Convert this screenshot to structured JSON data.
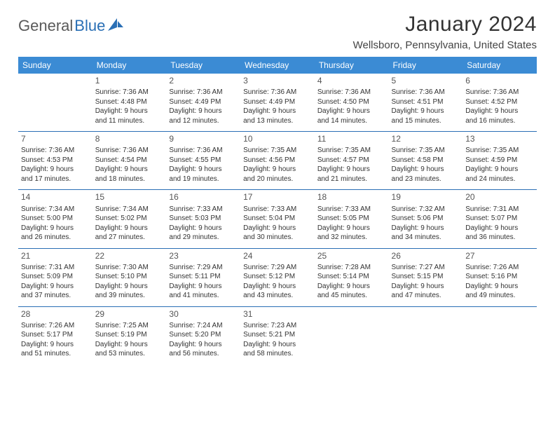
{
  "logo": {
    "part1": "General",
    "part2": "Blue"
  },
  "title": "January 2024",
  "location": "Wellsboro, Pennsylvania, United States",
  "colors": {
    "header_bg": "#3b8bd4",
    "header_text": "#ffffff",
    "rule": "#2a6fb5",
    "text": "#333333",
    "logo_gray": "#5a5a5a",
    "logo_blue": "#2a6fb5",
    "background": "#ffffff"
  },
  "typography": {
    "title_fontsize": 30,
    "location_fontsize": 15,
    "dayhead_fontsize": 12,
    "cell_fontsize": 10
  },
  "day_headers": [
    "Sunday",
    "Monday",
    "Tuesday",
    "Wednesday",
    "Thursday",
    "Friday",
    "Saturday"
  ],
  "weeks": [
    [
      null,
      {
        "n": "1",
        "sr": "Sunrise: 7:36 AM",
        "ss": "Sunset: 4:48 PM",
        "d1": "Daylight: 9 hours",
        "d2": "and 11 minutes."
      },
      {
        "n": "2",
        "sr": "Sunrise: 7:36 AM",
        "ss": "Sunset: 4:49 PM",
        "d1": "Daylight: 9 hours",
        "d2": "and 12 minutes."
      },
      {
        "n": "3",
        "sr": "Sunrise: 7:36 AM",
        "ss": "Sunset: 4:49 PM",
        "d1": "Daylight: 9 hours",
        "d2": "and 13 minutes."
      },
      {
        "n": "4",
        "sr": "Sunrise: 7:36 AM",
        "ss": "Sunset: 4:50 PM",
        "d1": "Daylight: 9 hours",
        "d2": "and 14 minutes."
      },
      {
        "n": "5",
        "sr": "Sunrise: 7:36 AM",
        "ss": "Sunset: 4:51 PM",
        "d1": "Daylight: 9 hours",
        "d2": "and 15 minutes."
      },
      {
        "n": "6",
        "sr": "Sunrise: 7:36 AM",
        "ss": "Sunset: 4:52 PM",
        "d1": "Daylight: 9 hours",
        "d2": "and 16 minutes."
      }
    ],
    [
      {
        "n": "7",
        "sr": "Sunrise: 7:36 AM",
        "ss": "Sunset: 4:53 PM",
        "d1": "Daylight: 9 hours",
        "d2": "and 17 minutes."
      },
      {
        "n": "8",
        "sr": "Sunrise: 7:36 AM",
        "ss": "Sunset: 4:54 PM",
        "d1": "Daylight: 9 hours",
        "d2": "and 18 minutes."
      },
      {
        "n": "9",
        "sr": "Sunrise: 7:36 AM",
        "ss": "Sunset: 4:55 PM",
        "d1": "Daylight: 9 hours",
        "d2": "and 19 minutes."
      },
      {
        "n": "10",
        "sr": "Sunrise: 7:35 AM",
        "ss": "Sunset: 4:56 PM",
        "d1": "Daylight: 9 hours",
        "d2": "and 20 minutes."
      },
      {
        "n": "11",
        "sr": "Sunrise: 7:35 AM",
        "ss": "Sunset: 4:57 PM",
        "d1": "Daylight: 9 hours",
        "d2": "and 21 minutes."
      },
      {
        "n": "12",
        "sr": "Sunrise: 7:35 AM",
        "ss": "Sunset: 4:58 PM",
        "d1": "Daylight: 9 hours",
        "d2": "and 23 minutes."
      },
      {
        "n": "13",
        "sr": "Sunrise: 7:35 AM",
        "ss": "Sunset: 4:59 PM",
        "d1": "Daylight: 9 hours",
        "d2": "and 24 minutes."
      }
    ],
    [
      {
        "n": "14",
        "sr": "Sunrise: 7:34 AM",
        "ss": "Sunset: 5:00 PM",
        "d1": "Daylight: 9 hours",
        "d2": "and 26 minutes."
      },
      {
        "n": "15",
        "sr": "Sunrise: 7:34 AM",
        "ss": "Sunset: 5:02 PM",
        "d1": "Daylight: 9 hours",
        "d2": "and 27 minutes."
      },
      {
        "n": "16",
        "sr": "Sunrise: 7:33 AM",
        "ss": "Sunset: 5:03 PM",
        "d1": "Daylight: 9 hours",
        "d2": "and 29 minutes."
      },
      {
        "n": "17",
        "sr": "Sunrise: 7:33 AM",
        "ss": "Sunset: 5:04 PM",
        "d1": "Daylight: 9 hours",
        "d2": "and 30 minutes."
      },
      {
        "n": "18",
        "sr": "Sunrise: 7:33 AM",
        "ss": "Sunset: 5:05 PM",
        "d1": "Daylight: 9 hours",
        "d2": "and 32 minutes."
      },
      {
        "n": "19",
        "sr": "Sunrise: 7:32 AM",
        "ss": "Sunset: 5:06 PM",
        "d1": "Daylight: 9 hours",
        "d2": "and 34 minutes."
      },
      {
        "n": "20",
        "sr": "Sunrise: 7:31 AM",
        "ss": "Sunset: 5:07 PM",
        "d1": "Daylight: 9 hours",
        "d2": "and 36 minutes."
      }
    ],
    [
      {
        "n": "21",
        "sr": "Sunrise: 7:31 AM",
        "ss": "Sunset: 5:09 PM",
        "d1": "Daylight: 9 hours",
        "d2": "and 37 minutes."
      },
      {
        "n": "22",
        "sr": "Sunrise: 7:30 AM",
        "ss": "Sunset: 5:10 PM",
        "d1": "Daylight: 9 hours",
        "d2": "and 39 minutes."
      },
      {
        "n": "23",
        "sr": "Sunrise: 7:29 AM",
        "ss": "Sunset: 5:11 PM",
        "d1": "Daylight: 9 hours",
        "d2": "and 41 minutes."
      },
      {
        "n": "24",
        "sr": "Sunrise: 7:29 AM",
        "ss": "Sunset: 5:12 PM",
        "d1": "Daylight: 9 hours",
        "d2": "and 43 minutes."
      },
      {
        "n": "25",
        "sr": "Sunrise: 7:28 AM",
        "ss": "Sunset: 5:14 PM",
        "d1": "Daylight: 9 hours",
        "d2": "and 45 minutes."
      },
      {
        "n": "26",
        "sr": "Sunrise: 7:27 AM",
        "ss": "Sunset: 5:15 PM",
        "d1": "Daylight: 9 hours",
        "d2": "and 47 minutes."
      },
      {
        "n": "27",
        "sr": "Sunrise: 7:26 AM",
        "ss": "Sunset: 5:16 PM",
        "d1": "Daylight: 9 hours",
        "d2": "and 49 minutes."
      }
    ],
    [
      {
        "n": "28",
        "sr": "Sunrise: 7:26 AM",
        "ss": "Sunset: 5:17 PM",
        "d1": "Daylight: 9 hours",
        "d2": "and 51 minutes."
      },
      {
        "n": "29",
        "sr": "Sunrise: 7:25 AM",
        "ss": "Sunset: 5:19 PM",
        "d1": "Daylight: 9 hours",
        "d2": "and 53 minutes."
      },
      {
        "n": "30",
        "sr": "Sunrise: 7:24 AM",
        "ss": "Sunset: 5:20 PM",
        "d1": "Daylight: 9 hours",
        "d2": "and 56 minutes."
      },
      {
        "n": "31",
        "sr": "Sunrise: 7:23 AM",
        "ss": "Sunset: 5:21 PM",
        "d1": "Daylight: 9 hours",
        "d2": "and 58 minutes."
      },
      null,
      null,
      null
    ]
  ]
}
